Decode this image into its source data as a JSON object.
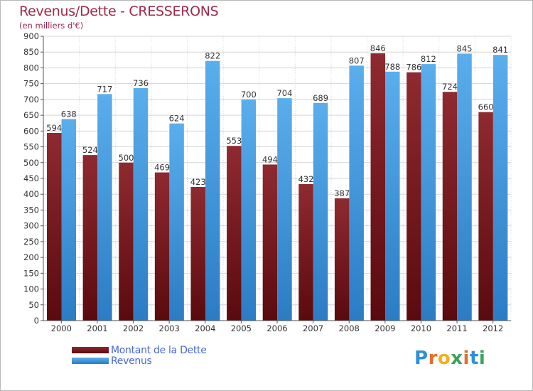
{
  "title": "Revenus/Dette - CRESSERONS",
  "subtitle": "(en milliers d'€)",
  "logo": "Proxiti",
  "colors": {
    "dette": "#7a1a1f",
    "revenus": "#4aa0e6",
    "title": "#a0284a",
    "legend_text": "#4a67d6"
  },
  "chart_data": {
    "type": "bar",
    "title": "Revenus/Dette - CRESSERONS",
    "ylabel": "(en milliers d'€)",
    "xlabel": "",
    "ylim": [
      0,
      900
    ],
    "yticks": [
      0,
      50,
      100,
      150,
      200,
      250,
      300,
      350,
      400,
      450,
      500,
      550,
      600,
      650,
      700,
      750,
      800,
      850,
      900
    ],
    "grid": true,
    "legend_position": "bottom-left",
    "categories": [
      "2000",
      "2001",
      "2002",
      "2003",
      "2004",
      "2005",
      "2006",
      "2007",
      "2008",
      "2009",
      "2010",
      "2011",
      "2012"
    ],
    "series": [
      {
        "name": "Montant de la Dette",
        "values": [
          594,
          524,
          500,
          469,
          423,
          553,
          494,
          432,
          387,
          846,
          786,
          724,
          660
        ]
      },
      {
        "name": "Revenus",
        "values": [
          638,
          717,
          736,
          624,
          822,
          700,
          704,
          689,
          807,
          788,
          812,
          845,
          841
        ]
      }
    ]
  }
}
